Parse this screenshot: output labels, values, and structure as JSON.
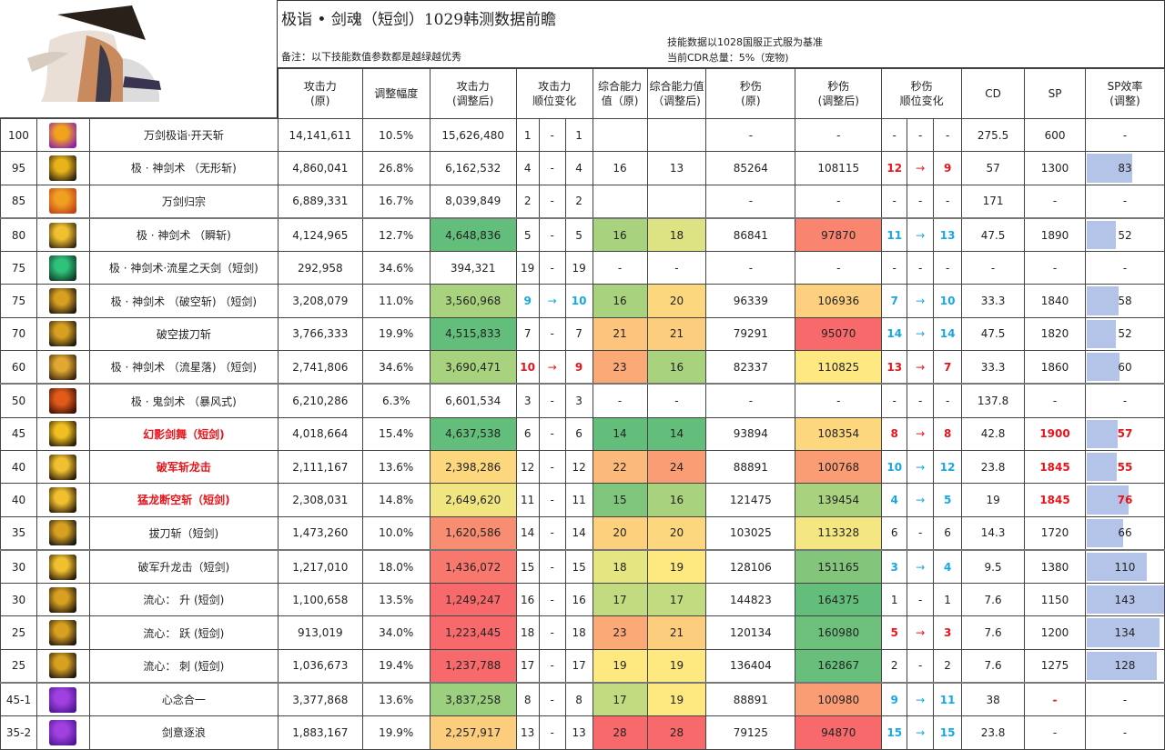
{
  "header": {
    "title": "极诣 • 剑魂（短剑）1029韩测数据前瞻",
    "note": "备注：以下技能数值参数都是越绿越优秀",
    "basis_line1": "技能数据以1028国服正式服为基准",
    "basis_line2": "当前CDR总量：5%（宠物)"
  },
  "columns": {
    "atk_orig": "攻击力\n(原)",
    "adj_pct": "调整幅度",
    "atk_adj": "攻击力\n(调整后)",
    "atk_rank": "攻击力\n顺位变化",
    "ov_orig": "综合能力值（原)",
    "ov_adj": "综合能力值（调整后)",
    "dps_orig": "秒伤\n(原)",
    "dps_adj": "秒伤\n(调整后)",
    "dps_rank": "秒伤\n顺位变化",
    "cd": "CD",
    "sp": "SP",
    "sp_eff": "SP效率\n(调整)"
  },
  "colors": {
    "green_dark": "#63be7b",
    "green_mid": "#a9d27f",
    "yellow_green": "#dde382",
    "yellow": "#fde47f",
    "orange_light": "#fdcd7e",
    "orange": "#fbaa77",
    "red_light": "#f98570",
    "red": "#f8696b",
    "bar": "#b4c3e8",
    "rank_up": "#e8141b",
    "rank_down": "#18a8e0"
  },
  "rows": [
    {
      "level": "100",
      "icon": "kaitian-icon",
      "ic": [
        "#f2a21c",
        "#8a1fb0"
      ],
      "name": "万剑极诣·开天斩",
      "red": false,
      "atk": "14,141,611",
      "pct": "10.5%",
      "atk_adj": "15,626,480",
      "atk_bg": "",
      "r1": "1",
      "ra": "-",
      "r2": "1",
      "rdir": "",
      "ov": "",
      "ov_bg": "",
      "ov2": "",
      "ov2_bg": "",
      "dps": "-",
      "dps_adj": "-",
      "dps_bg": "",
      "d1": "-",
      "da": "-",
      "d2": "-",
      "ddir": "",
      "cd": "275.5",
      "sp": "600",
      "sp_red": false,
      "eff": "-",
      "eff_w": 0,
      "eff_red": false
    },
    {
      "level": "95",
      "icon": "wuxing-icon",
      "ic": [
        "#e8b21a",
        "#2a2110"
      ],
      "name": "极 · 神剑术 （无形斩)",
      "red": false,
      "atk": "4,860,041",
      "pct": "26.8%",
      "atk_adj": "6,162,532",
      "atk_bg": "",
      "r1": "4",
      "ra": "-",
      "r2": "4",
      "rdir": "",
      "ov": "16",
      "ov_bg": "",
      "ov2": "13",
      "ov2_bg": "",
      "dps": "85264",
      "dps_adj": "108115",
      "dps_bg": "",
      "d1": "12",
      "da": "→",
      "d2": "9",
      "ddir": "up",
      "cd": "57",
      "sp": "1300",
      "sp_red": false,
      "eff": "83",
      "eff_w": 50,
      "eff_red": false
    },
    {
      "level": "85",
      "icon": "guizong-icon",
      "ic": [
        "#f0a020",
        "#c0401a"
      ],
      "name": "万剑归宗",
      "red": false,
      "atk": "6,889,331",
      "pct": "16.7%",
      "atk_adj": "8,039,849",
      "atk_bg": "",
      "r1": "2",
      "ra": "-",
      "r2": "2",
      "rdir": "",
      "ov": "",
      "ov_bg": "",
      "ov2": "",
      "ov2_bg": "",
      "dps": "-",
      "dps_adj": "-",
      "dps_bg": "",
      "d1": "-",
      "da": "-",
      "d2": "-",
      "ddir": "",
      "cd": "171",
      "sp": "-",
      "sp_red": false,
      "eff": "-",
      "eff_w": 0,
      "eff_red": false
    },
    {
      "level": "80",
      "icon": "shunzhan-icon",
      "ic": [
        "#f0c030",
        "#3a2a10"
      ],
      "name": "极 · 神剑术 （瞬斩)",
      "red": false,
      "atk": "4,124,965",
      "pct": "12.7%",
      "atk_adj": "4,648,836",
      "atk_bg": "#63be7b",
      "r1": "5",
      "ra": "-",
      "r2": "5",
      "rdir": "",
      "ov": "16",
      "ov_bg": "#a9d27f",
      "ov2": "18",
      "ov2_bg": "#dde382",
      "dps": "86841",
      "dps_adj": "97870",
      "dps_bg": "#f98570",
      "d1": "11",
      "da": "→",
      "d2": "13",
      "ddir": "down",
      "cd": "47.5",
      "sp": "1890",
      "sp_red": false,
      "eff": "52",
      "eff_w": 32,
      "eff_red": false
    },
    {
      "level": "75",
      "icon": "tianjian-icon",
      "ic": [
        "#2fc07a",
        "#0d3a25"
      ],
      "name": "极 · 神剑术·流星之天剑（短剑)",
      "red": false,
      "atk": "292,958",
      "pct": "34.6%",
      "atk_adj": "394,321",
      "atk_bg": "",
      "r1": "19",
      "ra": "-",
      "r2": "19",
      "rdir": "",
      "ov": "-",
      "ov_bg": "",
      "ov2": "-",
      "ov2_bg": "",
      "dps": "-",
      "dps_adj": "-",
      "dps_bg": "",
      "d1": "-",
      "da": "-",
      "d2": "-",
      "ddir": "",
      "cd": "-",
      "sp": "-",
      "sp_red": false,
      "eff": "-",
      "eff_w": 0,
      "eff_red": false
    },
    {
      "level": "75",
      "icon": "pokong-icon",
      "ic": [
        "#d8a020",
        "#201810"
      ],
      "name": "极 · 神剑术 （破空斩) （短剑)",
      "red": false,
      "atk": "3,208,079",
      "pct": "11.0%",
      "atk_adj": "3,560,968",
      "atk_bg": "#a9d27f",
      "r1": "9",
      "ra": "→",
      "r2": "10",
      "rdir": "down",
      "ov": "16",
      "ov_bg": "#a9d27f",
      "ov2": "20",
      "ov2_bg": "#fdd77e",
      "dps": "96339",
      "dps_adj": "106936",
      "dps_bg": "#fcd07e",
      "d1": "7",
      "da": "→",
      "d2": "10",
      "ddir": "down",
      "cd": "33.3",
      "sp": "1840",
      "sp_red": false,
      "eff": "58",
      "eff_w": 35,
      "eff_red": false
    },
    {
      "level": "70",
      "icon": "badao-icon",
      "ic": [
        "#d8a020",
        "#201810"
      ],
      "name": "破空拔刀斩",
      "red": false,
      "atk": "3,766,333",
      "pct": "19.9%",
      "atk_adj": "4,515,833",
      "atk_bg": "#63be7b",
      "r1": "7",
      "ra": "-",
      "r2": "7",
      "rdir": "",
      "ov": "21",
      "ov_bg": "#fcc47c",
      "ov2": "21",
      "ov2_bg": "#fdcd7e",
      "dps": "79291",
      "dps_adj": "95070",
      "dps_bg": "#f8696b",
      "d1": "14",
      "da": "→",
      "d2": "14",
      "ddir": "down",
      "cd": "47.5",
      "sp": "1820",
      "sp_red": false,
      "eff": "52",
      "eff_w": 32,
      "eff_red": false
    },
    {
      "level": "60",
      "icon": "liuxing-icon",
      "ic": [
        "#e0a830",
        "#3a2410"
      ],
      "name": "极 · 神剑术 （流星落) （短剑)",
      "red": false,
      "atk": "2,741,806",
      "pct": "34.6%",
      "atk_adj": "3,690,471",
      "atk_bg": "#a9d27f",
      "r1": "10",
      "ra": "→",
      "r2": "9",
      "rdir": "up",
      "ov": "23",
      "ov_bg": "#fbaa77",
      "ov2": "16",
      "ov2_bg": "#a9d27f",
      "dps": "82337",
      "dps_adj": "110825",
      "dps_bg": "#fde881",
      "d1": "13",
      "da": "→",
      "d2": "7",
      "ddir": "up",
      "cd": "33.3",
      "sp": "1860",
      "sp_red": false,
      "eff": "60",
      "eff_w": 36,
      "eff_red": false
    },
    {
      "level": "50",
      "icon": "baofeng-icon",
      "ic": [
        "#e05a18",
        "#3a1008"
      ],
      "name": "极 · 鬼剑术 （暴风式)",
      "red": false,
      "atk": "6,210,286",
      "pct": "6.3%",
      "atk_adj": "6,601,534",
      "atk_bg": "",
      "r1": "3",
      "ra": "-",
      "r2": "3",
      "rdir": "",
      "ov": "-",
      "ov_bg": "",
      "ov2": "-",
      "ov2_bg": "",
      "dps": "-",
      "dps_adj": "-",
      "dps_bg": "",
      "d1": "-",
      "da": "-",
      "d2": "-",
      "ddir": "",
      "cd": "137.8",
      "sp": "-",
      "sp_red": false,
      "eff": "-",
      "eff_w": 0,
      "eff_red": false
    },
    {
      "level": "45",
      "icon": "huanying-icon",
      "ic": [
        "#f0c020",
        "#2a1c08"
      ],
      "name": "幻影剑舞（短剑)",
      "red": true,
      "atk": "4,018,664",
      "pct": "15.4%",
      "atk_adj": "4,637,538",
      "atk_bg": "#63be7b",
      "r1": "6",
      "ra": "-",
      "r2": "6",
      "rdir": "",
      "ov": "14",
      "ov_bg": "#63be7b",
      "ov2": "14",
      "ov2_bg": "#63be7b",
      "dps": "93894",
      "dps_adj": "108354",
      "dps_bg": "#fdd77e",
      "d1": "8",
      "da": "→",
      "d2": "8",
      "ddir": "up",
      "cd": "42.8",
      "sp": "1900",
      "sp_red": true,
      "eff": "57",
      "eff_w": 34,
      "eff_red": true
    },
    {
      "level": "40",
      "icon": "pojun-icon",
      "ic": [
        "#f0c030",
        "#2a1c08"
      ],
      "name": "破军斩龙击",
      "red": true,
      "atk": "2,111,167",
      "pct": "13.6%",
      "atk_adj": "2,398,286",
      "atk_bg": "#fdd77e",
      "r1": "12",
      "ra": "-",
      "r2": "12",
      "rdir": "",
      "ov": "22",
      "ov_bg": "#fcba7a",
      "ov2": "24",
      "ov2_bg": "#fa9d74",
      "dps": "88891",
      "dps_adj": "100768",
      "dps_bg": "#fa9d74",
      "d1": "10",
      "da": "→",
      "d2": "12",
      "ddir": "down",
      "cd": "23.8",
      "sp": "1845",
      "sp_red": true,
      "eff": "55",
      "eff_w": 33,
      "eff_red": true
    },
    {
      "level": "40",
      "icon": "menglong-icon",
      "ic": [
        "#f0c030",
        "#2a1c08"
      ],
      "name": "猛龙断空斩（短剑)",
      "red": true,
      "atk": "2,308,031",
      "pct": "14.8%",
      "atk_adj": "2,649,620",
      "atk_bg": "#f1e582",
      "r1": "11",
      "ra": "-",
      "r2": "11",
      "rdir": "",
      "ov": "15",
      "ov_bg": "#80c57c",
      "ov2": "16",
      "ov2_bg": "#a9d27f",
      "dps": "121475",
      "dps_adj": "139454",
      "dps_bg": "#a9d27f",
      "d1": "4",
      "da": "→",
      "d2": "5",
      "ddir": "down",
      "cd": "19",
      "sp": "1845",
      "sp_red": true,
      "eff": "76",
      "eff_w": 46,
      "eff_red": true
    },
    {
      "level": "35",
      "icon": "badaozhan-icon",
      "ic": [
        "#d8a020",
        "#151515"
      ],
      "name": "拔刀斩（短剑)",
      "red": false,
      "atk": "1,473,260",
      "pct": "10.0%",
      "atk_adj": "1,620,586",
      "atk_bg": "#f98d72",
      "r1": "14",
      "ra": "-",
      "r2": "14",
      "rdir": "",
      "ov": "20",
      "ov_bg": "#fdd07e",
      "ov2": "20",
      "ov2_bg": "#fdd77e",
      "dps": "103025",
      "dps_adj": "113328",
      "dps_bg": "#f4e681",
      "d1": "6",
      "da": "-",
      "d2": "6",
      "ddir": "",
      "cd": "14.3",
      "sp": "1720",
      "sp_red": false,
      "eff": "66",
      "eff_w": 40,
      "eff_red": false
    },
    {
      "level": "30",
      "icon": "shenglong-icon",
      "ic": [
        "#f0c030",
        "#2a1c08"
      ],
      "name": "破军升龙击（短剑)",
      "red": false,
      "atk": "1,217,010",
      "pct": "18.0%",
      "atk_adj": "1,436,072",
      "atk_bg": "#f8786d",
      "r1": "15",
      "ra": "-",
      "r2": "15",
      "rdir": "",
      "ov": "18",
      "ov_bg": "#e5e582",
      "ov2": "19",
      "ov2_bg": "#fee980",
      "dps": "128106",
      "dps_adj": "151165",
      "dps_bg": "#82c57b",
      "d1": "3",
      "da": "→",
      "d2": "4",
      "ddir": "down",
      "cd": "9.5",
      "sp": "1380",
      "sp_red": false,
      "eff": "110",
      "eff_w": 66,
      "eff_red": false
    },
    {
      "level": "30",
      "icon": "liuxin-sheng-icon",
      "ic": [
        "#d8a020",
        "#201810"
      ],
      "name": "流心： 升 (短剑)",
      "red": false,
      "atk": "1,100,658",
      "pct": "13.5%",
      "atk_adj": "1,249,247",
      "atk_bg": "#f8696b",
      "r1": "16",
      "ra": "-",
      "r2": "16",
      "rdir": "",
      "ov": "17",
      "ov_bg": "#c2db80",
      "ov2": "17",
      "ov2_bg": "#c2db80",
      "dps": "144823",
      "dps_adj": "164375",
      "dps_bg": "#63be7b",
      "d1": "1",
      "da": "-",
      "d2": "1",
      "ddir": "",
      "cd": "7.6",
      "sp": "1150",
      "sp_red": false,
      "eff": "143",
      "eff_w": 85,
      "eff_red": false
    },
    {
      "level": "25",
      "icon": "liuxin-yue-icon",
      "ic": [
        "#d8a020",
        "#201810"
      ],
      "name": "流心： 跃 (短剑)",
      "red": false,
      "atk": "913,019",
      "pct": "34.0%",
      "atk_adj": "1,223,445",
      "atk_bg": "#f8696b",
      "r1": "18",
      "ra": "-",
      "r2": "18",
      "rdir": "",
      "ov": "23",
      "ov_bg": "#fbaa77",
      "ov2": "21",
      "ov2_bg": "#fdcd7e",
      "dps": "120134",
      "dps_adj": "160980",
      "dps_bg": "#6cc07b",
      "d1": "5",
      "da": "→",
      "d2": "3",
      "ddir": "up",
      "cd": "7.6",
      "sp": "1200",
      "sp_red": false,
      "eff": "134",
      "eff_w": 80,
      "eff_red": false
    },
    {
      "level": "25",
      "icon": "liuxin-ci-icon",
      "ic": [
        "#d8a020",
        "#201810"
      ],
      "name": "流心： 刺 (短剑)",
      "red": false,
      "atk": "1,036,673",
      "pct": "19.4%",
      "atk_adj": "1,237,788",
      "atk_bg": "#f8696b",
      "r1": "17",
      "ra": "-",
      "r2": "17",
      "rdir": "",
      "ov": "19",
      "ov_bg": "#fee980",
      "ov2": "19",
      "ov2_bg": "#fee980",
      "dps": "136404",
      "dps_adj": "162867",
      "dps_bg": "#67bf7b",
      "d1": "2",
      "da": "-",
      "d2": "2",
      "ddir": "",
      "cd": "7.6",
      "sp": "1275",
      "sp_red": false,
      "eff": "128",
      "eff_w": 77,
      "eff_red": false
    },
    {
      "level": "45-1",
      "icon": "xinnian-icon",
      "ic": [
        "#a040e0",
        "#4a1890"
      ],
      "name": "心念合一",
      "red": false,
      "atk": "3,377,868",
      "pct": "13.6%",
      "atk_adj": "3,837,258",
      "atk_bg": "#9ccf7e",
      "r1": "8",
      "ra": "-",
      "r2": "8",
      "rdir": "",
      "ov": "17",
      "ov_bg": "#c2db80",
      "ov2": "19",
      "ov2_bg": "#fee980",
      "dps": "88891",
      "dps_adj": "100980",
      "dps_bg": "#fa9d74",
      "d1": "9",
      "da": "→",
      "d2": "11",
      "ddir": "down",
      "cd": "38",
      "sp": "-",
      "sp_red": true,
      "eff": "-",
      "eff_w": 0,
      "eff_red": false
    },
    {
      "level": "35-2",
      "icon": "jianyi-icon",
      "ic": [
        "#a040e0",
        "#4a1890"
      ],
      "name": "剑意逐浪",
      "red": false,
      "atk": "1,883,167",
      "pct": "19.9%",
      "atk_adj": "2,257,917",
      "atk_bg": "#fdcd7e",
      "r1": "13",
      "ra": "-",
      "r2": "13",
      "rdir": "",
      "ov": "28",
      "ov_bg": "#f8696b",
      "ov2": "28",
      "ov2_bg": "#f8696b",
      "dps": "79125",
      "dps_adj": "94870",
      "dps_bg": "#f8696b",
      "d1": "15",
      "da": "→",
      "d2": "15",
      "ddir": "down",
      "cd": "23.8",
      "sp": "-",
      "sp_red": false,
      "eff": "-",
      "eff_w": 0,
      "eff_red": false
    }
  ]
}
